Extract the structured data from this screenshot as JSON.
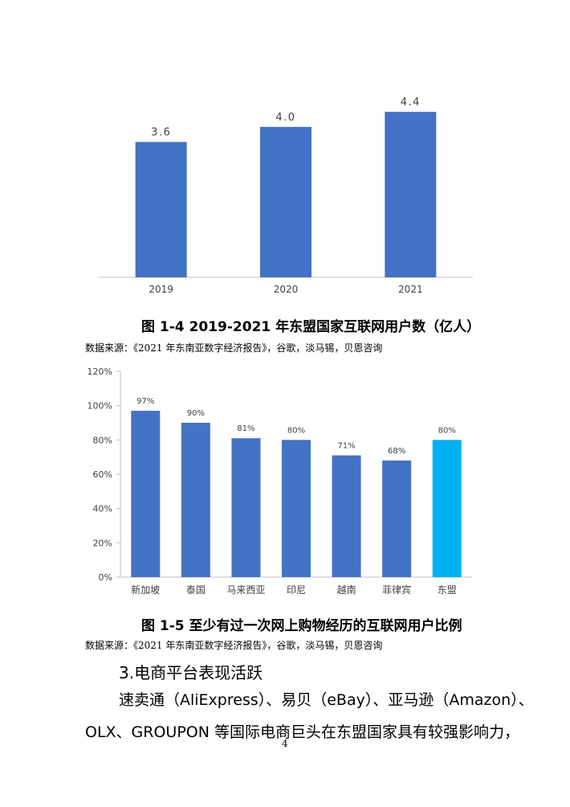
{
  "figures": {
    "fig14_caption": "图 1-4   2019-2021 年东盟国家互联网用户数（亿人）",
    "fig14_source": "数据来源：《2021 年东南亚数字经济报告》，谷歌，淡马锡，贝恩咨询",
    "fig15_caption": "图 1-5   至少有过一次网上购物经历的互联网用户比例",
    "fig15_source": "数据来源：《2021 年东南亚数字经济报告》，谷歌，淡马锡，贝恩咨询"
  },
  "body": {
    "section_heading": "3.电商平台表现活跃",
    "line1": "速卖通（AliExpress）、易贝（eBay）、亚马逊（Amazon）、",
    "line2": "OLX、GROUPON 等国际电商巨头在东盟国家具有较强影响力，",
    "page_number": "4"
  },
  "chart_data": [
    {
      "type": "bar",
      "title": "",
      "categories": [
        "2019",
        "2020",
        "2021"
      ],
      "values": [
        3.6,
        4.0,
        4.4
      ],
      "value_labels": [
        "3.6",
        "4.0",
        "4.4"
      ],
      "bar_color": "#4472C4",
      "ylim": [
        0,
        5.9
      ],
      "grid": false,
      "y_axis_visible": false
    },
    {
      "type": "bar",
      "title": "",
      "categories": [
        "新加坡",
        "泰国",
        "马来西亚",
        "印尼",
        "越南",
        "菲律宾",
        "东盟"
      ],
      "values": [
        97,
        90,
        81,
        80,
        71,
        68,
        80
      ],
      "value_labels": [
        "97%",
        "90%",
        "81%",
        "80%",
        "71%",
        "68%",
        "80%"
      ],
      "bar_colors": [
        "#4472C4",
        "#4472C4",
        "#4472C4",
        "#4472C4",
        "#4472C4",
        "#4472C4",
        "#00B0F0"
      ],
      "ylim": [
        0,
        120
      ],
      "yticks": [
        "0%",
        "20%",
        "40%",
        "60%",
        "80%",
        "100%",
        "120%"
      ],
      "grid": false
    }
  ]
}
